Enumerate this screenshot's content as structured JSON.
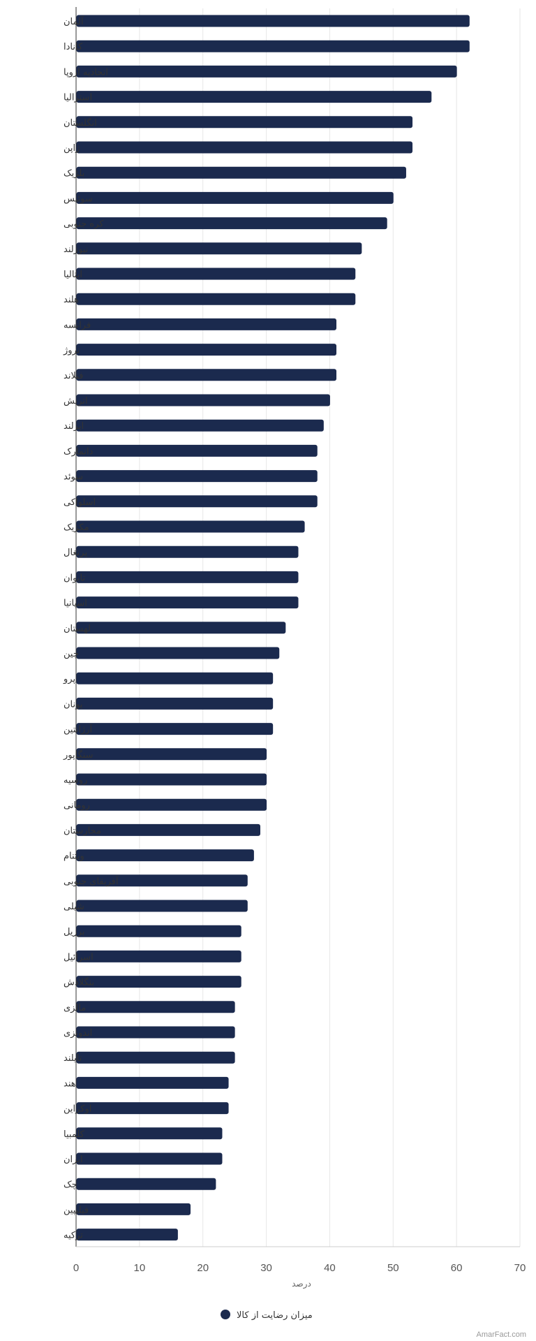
{
  "chart_data": {
    "type": "bar",
    "orientation": "horizontal",
    "categories": [
      "آلمان",
      "کانادا",
      "اتحادیه اروپا",
      "استرالیا",
      "انگلستان",
      "ژاپن",
      "بلژیک",
      "سوئیس",
      "کره جنوبی",
      "نیوزلند",
      "ایتالیا",
      "هلند",
      "فرانسه",
      "نروژ",
      "فنلاند",
      "اتریش",
      "ایرلند",
      "دانمارک",
      "سوئد",
      "اسلواکی",
      "مکزیک",
      "پرتغال",
      "تایوان",
      "اسپانیا",
      "لهستان",
      "چین",
      "پرو",
      "یونان",
      "آرژانتین",
      "سنگاپور",
      "روسیه",
      "رومانی",
      "مجارستان",
      "ویتنام",
      "آفریقای جنوبی",
      "شیلی",
      "برزیل",
      "اسرائیل",
      "بنگلادش",
      "مالزی",
      "اندونزی",
      "تایلند",
      "هند",
      "اوکراین",
      "کلمبیا",
      "ایران",
      "چک",
      "فیلیپین",
      "ترکیه"
    ],
    "series": [
      {
        "name": "میزان رضایت از کالا",
        "values": [
          62,
          62,
          60,
          56,
          53,
          53,
          52,
          50,
          49,
          45,
          44,
          44,
          41,
          41,
          41,
          40,
          39,
          38,
          38,
          38,
          36,
          35,
          35,
          35,
          33,
          32,
          31,
          31,
          31,
          30,
          30,
          30,
          29,
          28,
          27,
          27,
          26,
          26,
          26,
          25,
          25,
          25,
          24,
          24,
          23,
          23,
          22,
          18,
          16
        ]
      }
    ],
    "xlim": [
      0,
      70
    ],
    "xticks": [
      0,
      10,
      20,
      30,
      40,
      50,
      60,
      70
    ],
    "xlabel": "درصد",
    "grid": true,
    "legend_position": "bottom",
    "bar_color": "#1b2a4e"
  },
  "credit": "AmarFact.com"
}
